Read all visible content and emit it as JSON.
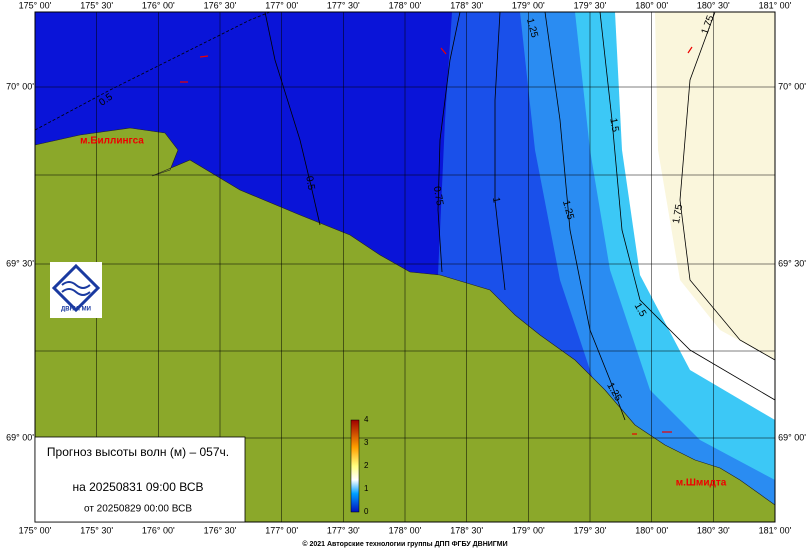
{
  "map": {
    "lon_labels": [
      "175° 00'",
      "175° 30'",
      "176° 00'",
      "176° 30'",
      "177° 00'",
      "177° 30'",
      "178° 00'",
      "178° 30'",
      "179° 00'",
      "179° 30'",
      "180° 00'",
      "180° 30'",
      "181° 00'"
    ],
    "lat_labels": [
      "70° 00'",
      "69° 30'",
      "69° 00'"
    ],
    "contour_labels": [
      "0.5",
      "0.5",
      "0.75",
      "1",
      "1.25",
      "1.25",
      "1.25",
      "1.5",
      "1.5",
      "1.75",
      "1.75"
    ],
    "places": [
      "м.Биллингса",
      "м.Шмидта"
    ],
    "legend": {
      "title": "Прогноз высоты волн (м) – 057ч.",
      "valid": "на 20250831 09:00 ВСВ",
      "issued": "от 20250829 00:00 ВСВ"
    },
    "colorbar_ticks": [
      "0",
      "1",
      "2",
      "3",
      "4"
    ],
    "logo": "ДВНИГМИ",
    "footer": "© 2021 Авторские технологии группы ДПП ФГБУ ДВНИГМИ"
  }
}
